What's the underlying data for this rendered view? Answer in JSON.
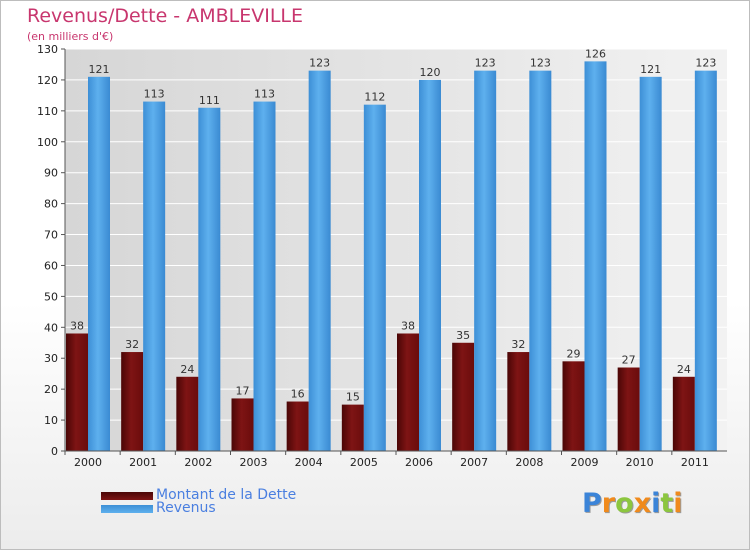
{
  "chart_data": {
    "type": "bar",
    "title": "Revenus/Dette - AMBLEVILLE",
    "subtitle": "(en milliers d'€)",
    "categories": [
      "2000",
      "2001",
      "2002",
      "2003",
      "2004",
      "2005",
      "2006",
      "2007",
      "2008",
      "2009",
      "2010",
      "2011"
    ],
    "series": [
      {
        "name": "Montant de la Dette",
        "color": "#7a0f0f",
        "values": [
          38,
          32,
          24,
          17,
          16,
          15,
          38,
          35,
          32,
          29,
          27,
          24
        ]
      },
      {
        "name": "Revenus",
        "color": "#4da3e6",
        "values": [
          121,
          113,
          111,
          113,
          123,
          112,
          120,
          123,
          123,
          126,
          121,
          123
        ]
      }
    ],
    "ylim": [
      0,
      130
    ],
    "yticks": [
      0,
      10,
      20,
      30,
      40,
      50,
      60,
      70,
      80,
      90,
      100,
      110,
      120,
      130
    ],
    "grid": true,
    "legend_position": "bottom-left"
  },
  "logo": {
    "text": "Proxiti",
    "letters": [
      {
        "ch": "P",
        "color": "#3b84d8"
      },
      {
        "ch": "r",
        "color": "#f08a1c"
      },
      {
        "ch": "o",
        "color": "#8cc63f"
      },
      {
        "ch": "x",
        "color": "#f08a1c"
      },
      {
        "ch": "i",
        "color": "#3b84d8"
      },
      {
        "ch": "t",
        "color": "#8cc63f"
      },
      {
        "ch": "i",
        "color": "#f08a1c"
      }
    ]
  }
}
